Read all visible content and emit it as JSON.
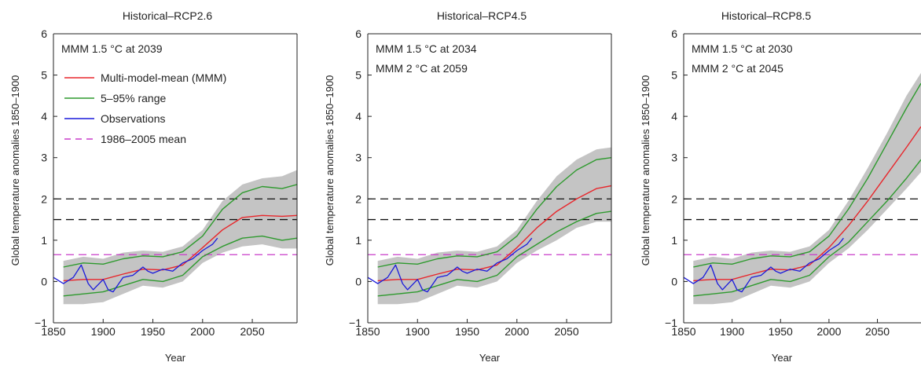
{
  "figure": {
    "xlabel": "Year",
    "ylabel": "Global temperature anomalies 1850–1900",
    "legend": {
      "mmm": "Multi-model-mean (MMM)",
      "range": "5–95% range",
      "obs": "Observations",
      "ref": "1986–2005 mean"
    }
  },
  "colors": {
    "mmm": "#e8262b",
    "range": "#2e9a2e",
    "obs": "#1a1adb",
    "ref": "#c93bc9",
    "threshold": "#111111",
    "envelope": "#c4c4c4"
  },
  "chart_data": [
    {
      "type": "line",
      "title": "Historical–RCP2.6",
      "xlabel": "Year",
      "ylabel": "Global temperature anomalies 1850–1900",
      "xlim": [
        1850,
        2095
      ],
      "ylim": [
        -1,
        6
      ],
      "xticks": [
        1850,
        1900,
        1950,
        2000,
        2050
      ],
      "yticks": [
        -1,
        0,
        1,
        2,
        3,
        4,
        5,
        6
      ],
      "annotations": [
        "MMM 1.5 °C at 2039"
      ],
      "legend_position": "top-left",
      "hlines": [
        {
          "y": 2.0,
          "style": "dashed",
          "color": "black"
        },
        {
          "y": 1.5,
          "style": "dashed",
          "color": "black"
        },
        {
          "y": 0.65,
          "style": "dashed",
          "color": "magenta",
          "label": "1986–2005 mean"
        }
      ],
      "series": [
        {
          "name": "Multi-model-mean (MMM)",
          "x": [
            1860,
            1880,
            1900,
            1920,
            1940,
            1960,
            1980,
            2000,
            2020,
            2040,
            2060,
            2080,
            2095
          ],
          "y": [
            0.02,
            0.05,
            0.05,
            0.18,
            0.3,
            0.28,
            0.4,
            0.82,
            1.25,
            1.55,
            1.6,
            1.58,
            1.6
          ]
        },
        {
          "name": "5–95% range upper",
          "x": [
            1860,
            1880,
            1900,
            1920,
            1940,
            1960,
            1980,
            2000,
            2020,
            2040,
            2060,
            2080,
            2095
          ],
          "y": [
            0.35,
            0.45,
            0.42,
            0.55,
            0.62,
            0.6,
            0.72,
            1.1,
            1.75,
            2.15,
            2.3,
            2.25,
            2.35
          ]
        },
        {
          "name": "5–95% range lower",
          "x": [
            1860,
            1880,
            1900,
            1920,
            1940,
            1960,
            1980,
            2000,
            2020,
            2040,
            2060,
            2080,
            2095
          ],
          "y": [
            -0.35,
            -0.3,
            -0.25,
            -0.1,
            0.05,
            0.0,
            0.15,
            0.6,
            0.85,
            1.05,
            1.1,
            1.0,
            1.05
          ]
        },
        {
          "name": "envelope upper",
          "x": [
            1860,
            1880,
            1900,
            1920,
            1940,
            1960,
            1980,
            2000,
            2020,
            2040,
            2060,
            2080,
            2095
          ],
          "y": [
            0.5,
            0.6,
            0.55,
            0.7,
            0.75,
            0.72,
            0.85,
            1.25,
            1.95,
            2.35,
            2.5,
            2.55,
            2.7
          ]
        },
        {
          "name": "envelope lower",
          "x": [
            1860,
            1880,
            1900,
            1920,
            1940,
            1960,
            1980,
            2000,
            2020,
            2040,
            2060,
            2080,
            2095
          ],
          "y": [
            -0.55,
            -0.55,
            -0.5,
            -0.3,
            -0.1,
            -0.15,
            0.0,
            0.45,
            0.7,
            0.85,
            0.9,
            0.8,
            0.8
          ]
        },
        {
          "name": "Observations",
          "x": [
            1850,
            1860,
            1870,
            1878,
            1885,
            1890,
            1900,
            1905,
            1910,
            1920,
            1930,
            1940,
            1945,
            1950,
            1960,
            1970,
            1980,
            1990,
            2000,
            2010,
            2015
          ],
          "y": [
            0.1,
            -0.05,
            0.1,
            0.4,
            -0.05,
            -0.2,
            0.05,
            -0.2,
            -0.25,
            0.1,
            0.15,
            0.35,
            0.25,
            0.2,
            0.3,
            0.25,
            0.45,
            0.55,
            0.75,
            0.9,
            1.05
          ]
        }
      ]
    },
    {
      "type": "line",
      "title": "Historical–RCP4.5",
      "xlabel": "Year",
      "ylabel": "Global temperature anomalies 1850–1900",
      "xlim": [
        1850,
        2095
      ],
      "ylim": [
        -1,
        6
      ],
      "xticks": [
        1850,
        1900,
        1950,
        2000,
        2050
      ],
      "yticks": [
        -1,
        0,
        1,
        2,
        3,
        4,
        5,
        6
      ],
      "annotations": [
        "MMM 1.5 °C at 2034",
        "MMM 2 °C at 2059"
      ],
      "hlines": [
        {
          "y": 2.0,
          "style": "dashed",
          "color": "black"
        },
        {
          "y": 1.5,
          "style": "dashed",
          "color": "black"
        },
        {
          "y": 0.65,
          "style": "dashed",
          "color": "magenta"
        }
      ],
      "series": [
        {
          "name": "Multi-model-mean (MMM)",
          "x": [
            1860,
            1880,
            1900,
            1920,
            1940,
            1960,
            1980,
            2000,
            2020,
            2040,
            2060,
            2080,
            2095
          ],
          "y": [
            0.02,
            0.05,
            0.05,
            0.18,
            0.3,
            0.28,
            0.4,
            0.82,
            1.3,
            1.7,
            2.0,
            2.25,
            2.32
          ]
        },
        {
          "name": "5–95% range upper",
          "x": [
            1860,
            1880,
            1900,
            1920,
            1940,
            1960,
            1980,
            2000,
            2020,
            2040,
            2060,
            2080,
            2095
          ],
          "y": [
            0.35,
            0.45,
            0.42,
            0.55,
            0.62,
            0.6,
            0.72,
            1.1,
            1.75,
            2.3,
            2.7,
            2.95,
            3.0
          ]
        },
        {
          "name": "5–95% range lower",
          "x": [
            1860,
            1880,
            1900,
            1920,
            1940,
            1960,
            1980,
            2000,
            2020,
            2040,
            2060,
            2080,
            2095
          ],
          "y": [
            -0.35,
            -0.3,
            -0.25,
            -0.1,
            0.05,
            0.0,
            0.15,
            0.6,
            0.9,
            1.2,
            1.45,
            1.65,
            1.7
          ]
        },
        {
          "name": "envelope upper",
          "x": [
            1860,
            1880,
            1900,
            1920,
            1940,
            1960,
            1980,
            2000,
            2020,
            2040,
            2060,
            2080,
            2095
          ],
          "y": [
            0.5,
            0.6,
            0.55,
            0.7,
            0.75,
            0.72,
            0.85,
            1.25,
            1.95,
            2.55,
            2.95,
            3.2,
            3.25
          ]
        },
        {
          "name": "envelope lower",
          "x": [
            1860,
            1880,
            1900,
            1920,
            1940,
            1960,
            1980,
            2000,
            2020,
            2040,
            2060,
            2080,
            2095
          ],
          "y": [
            -0.55,
            -0.55,
            -0.5,
            -0.3,
            -0.1,
            -0.15,
            0.0,
            0.45,
            0.75,
            1.0,
            1.3,
            1.45,
            1.45
          ]
        },
        {
          "name": "Observations",
          "x": [
            1850,
            1860,
            1870,
            1878,
            1885,
            1890,
            1900,
            1905,
            1910,
            1920,
            1930,
            1940,
            1945,
            1950,
            1960,
            1970,
            1980,
            1990,
            2000,
            2010,
            2015
          ],
          "y": [
            0.1,
            -0.05,
            0.1,
            0.4,
            -0.05,
            -0.2,
            0.05,
            -0.2,
            -0.25,
            0.1,
            0.15,
            0.35,
            0.25,
            0.2,
            0.3,
            0.25,
            0.45,
            0.55,
            0.75,
            0.9,
            1.05
          ]
        }
      ]
    },
    {
      "type": "line",
      "title": "Historical–RCP8.5",
      "xlabel": "Year",
      "ylabel": "Global temperature anomalies 1850–1900",
      "xlim": [
        1850,
        2095
      ],
      "ylim": [
        -1,
        6
      ],
      "xticks": [
        1850,
        1900,
        1950,
        2000,
        2050
      ],
      "yticks": [
        -1,
        0,
        1,
        2,
        3,
        4,
        5,
        6
      ],
      "annotations": [
        "MMM 1.5 °C at 2030",
        "MMM 2 °C at 2045"
      ],
      "hlines": [
        {
          "y": 2.0,
          "style": "dashed",
          "color": "black"
        },
        {
          "y": 1.5,
          "style": "dashed",
          "color": "black"
        },
        {
          "y": 0.65,
          "style": "dashed",
          "color": "magenta"
        }
      ],
      "series": [
        {
          "name": "Multi-model-mean (MMM)",
          "x": [
            1860,
            1880,
            1900,
            1920,
            1940,
            1960,
            1980,
            2000,
            2020,
            2040,
            2060,
            2080,
            2095
          ],
          "y": [
            0.02,
            0.05,
            0.05,
            0.18,
            0.3,
            0.28,
            0.4,
            0.82,
            1.35,
            1.95,
            2.6,
            3.25,
            3.75
          ]
        },
        {
          "name": "5–95% range upper",
          "x": [
            1860,
            1880,
            1900,
            1920,
            1940,
            1960,
            1980,
            2000,
            2020,
            2040,
            2060,
            2080,
            2095
          ],
          "y": [
            0.35,
            0.45,
            0.42,
            0.55,
            0.62,
            0.6,
            0.72,
            1.1,
            1.75,
            2.5,
            3.35,
            4.2,
            4.8
          ]
        },
        {
          "name": "5–95% range lower",
          "x": [
            1860,
            1880,
            1900,
            1920,
            1940,
            1960,
            1980,
            2000,
            2020,
            2040,
            2060,
            2080,
            2095
          ],
          "y": [
            -0.35,
            -0.3,
            -0.25,
            -0.1,
            0.05,
            0.0,
            0.15,
            0.6,
            0.95,
            1.45,
            1.95,
            2.5,
            2.95
          ]
        },
        {
          "name": "envelope upper",
          "x": [
            1860,
            1880,
            1900,
            1920,
            1940,
            1960,
            1980,
            2000,
            2020,
            2040,
            2060,
            2080,
            2095
          ],
          "y": [
            0.5,
            0.6,
            0.55,
            0.7,
            0.75,
            0.72,
            0.85,
            1.25,
            1.95,
            2.75,
            3.6,
            4.5,
            5.05
          ]
        },
        {
          "name": "envelope lower",
          "x": [
            1860,
            1880,
            1900,
            1920,
            1940,
            1960,
            1980,
            2000,
            2020,
            2040,
            2060,
            2080,
            2095
          ],
          "y": [
            -0.55,
            -0.55,
            -0.5,
            -0.3,
            -0.1,
            -0.15,
            0.0,
            0.45,
            0.8,
            1.25,
            1.75,
            2.25,
            2.65
          ]
        },
        {
          "name": "Observations",
          "x": [
            1850,
            1860,
            1870,
            1878,
            1885,
            1890,
            1900,
            1905,
            1910,
            1920,
            1930,
            1940,
            1945,
            1950,
            1960,
            1970,
            1980,
            1990,
            2000,
            2010,
            2015
          ],
          "y": [
            0.1,
            -0.05,
            0.1,
            0.4,
            -0.05,
            -0.2,
            0.05,
            -0.2,
            -0.25,
            0.1,
            0.15,
            0.35,
            0.25,
            0.2,
            0.3,
            0.25,
            0.45,
            0.55,
            0.75,
            0.9,
            1.05
          ]
        }
      ]
    }
  ]
}
